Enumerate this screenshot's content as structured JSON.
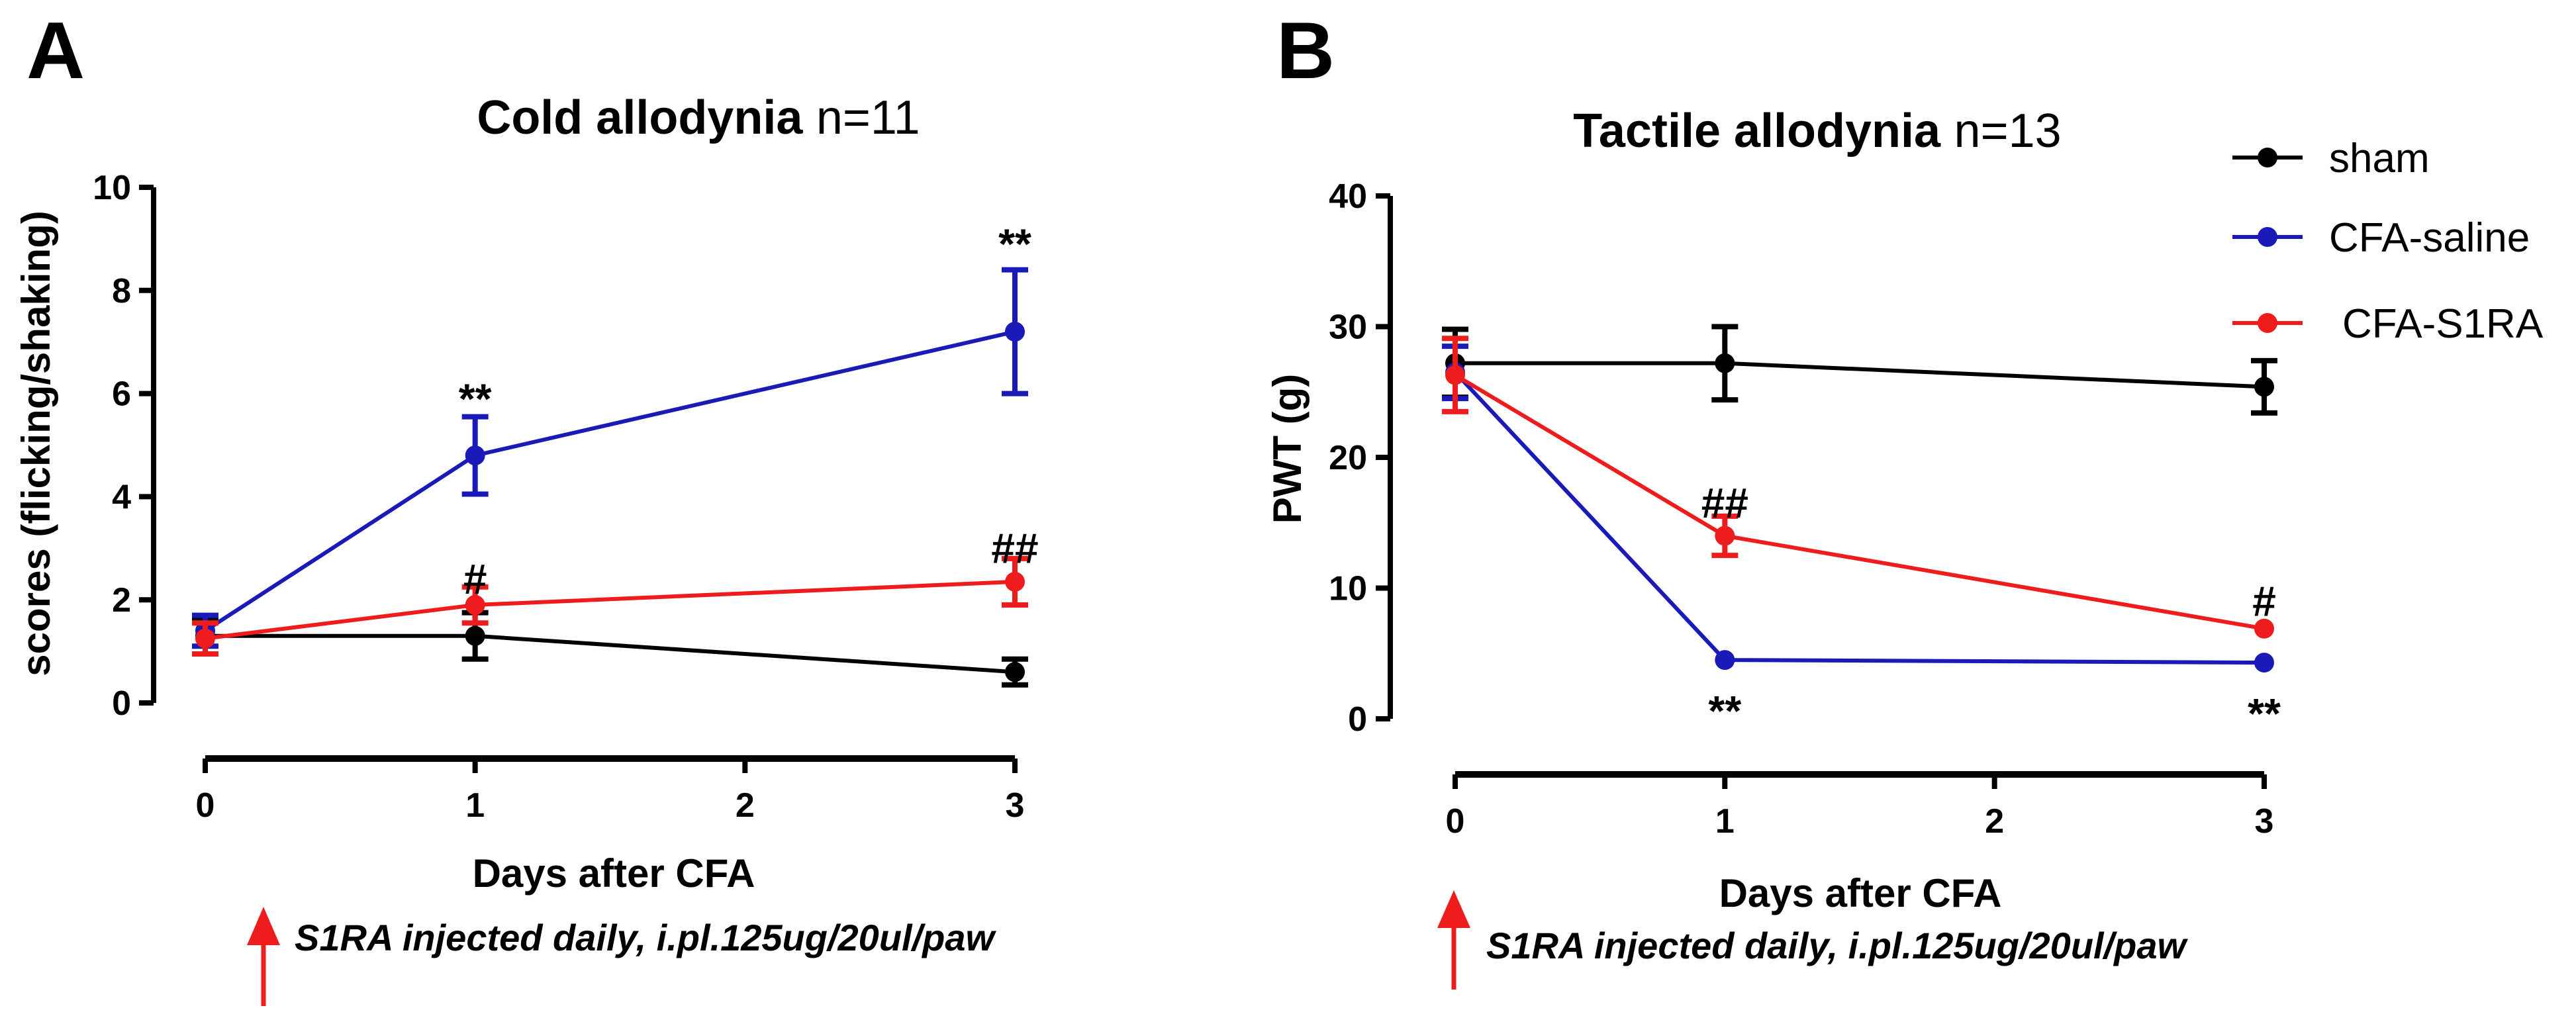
{
  "colors": {
    "sham": "#000000",
    "CFA-saline": "#1a1ab8",
    "CFA-S1RA": "#ee1c1c",
    "arrow": "#ee1c1c"
  },
  "legend": {
    "items": [
      "sham",
      "CFA-saline",
      "CFA-S1RA"
    ],
    "placement": "top-right"
  },
  "chart_data": [
    {
      "panel": "A",
      "type": "line",
      "title_bold": "Cold allodynia",
      "title_normal": "n=11",
      "xlabel": "Days after CFA",
      "ylabel": "scores (flicking/shaking)",
      "x_ticks": [
        0,
        1,
        2,
        3
      ],
      "y_ticks": [
        0,
        2,
        4,
        6,
        8,
        10
      ],
      "xlim": [
        0,
        3
      ],
      "ylim": [
        0,
        10
      ],
      "series": [
        {
          "name": "sham",
          "x": [
            0,
            1,
            3
          ],
          "y": [
            1.3,
            1.3,
            0.6
          ],
          "err": [
            0.35,
            0.45,
            0.25
          ]
        },
        {
          "name": "CFA-saline",
          "x": [
            0,
            1,
            3
          ],
          "y": [
            1.4,
            4.8,
            7.2
          ],
          "err": [
            0.3,
            0.75,
            1.2
          ]
        },
        {
          "name": "CFA-S1RA",
          "x": [
            0,
            1,
            3
          ],
          "y": [
            1.25,
            1.9,
            2.35
          ],
          "err": [
            0.3,
            0.35,
            0.45
          ]
        }
      ],
      "annotations": [
        {
          "text": "**",
          "x": 1,
          "y": 5.9
        },
        {
          "text": "**",
          "x": 3,
          "y": 8.9
        },
        {
          "text": "#",
          "x": 1,
          "y": 2.4
        },
        {
          "text": "##",
          "x": 3,
          "y": 3.0
        }
      ],
      "note": "S1RA injected daily, i.pl.125ug/20ul/paw"
    },
    {
      "panel": "B",
      "type": "line",
      "title_bold": "Tactile allodynia",
      "title_normal": "n=13",
      "xlabel": "Days after CFA",
      "ylabel": "PWT (g)",
      "x_ticks": [
        0,
        1,
        2,
        3
      ],
      "y_ticks": [
        0,
        10,
        20,
        30,
        40
      ],
      "xlim": [
        0,
        3
      ],
      "ylim": [
        0,
        40
      ],
      "series": [
        {
          "name": "sham",
          "x": [
            0,
            1,
            3
          ],
          "y": [
            27.2,
            27.2,
            25.4
          ],
          "err": [
            2.6,
            2.8,
            2.0
          ]
        },
        {
          "name": "CFA-saline",
          "x": [
            0,
            1,
            3
          ],
          "y": [
            26.5,
            4.5,
            4.3
          ],
          "err": [
            2.0,
            0,
            0
          ]
        },
        {
          "name": "CFA-S1RA",
          "x": [
            0,
            1,
            3
          ],
          "y": [
            26.3,
            14.0,
            6.9
          ],
          "err": [
            2.8,
            1.5,
            0
          ]
        }
      ],
      "annotations": [
        {
          "text": "##",
          "x": 1,
          "y": 16.5
        },
        {
          "text": "#",
          "x": 3,
          "y": 9.0
        },
        {
          "text": "**",
          "x": 1,
          "y": 0.6
        },
        {
          "text": "**",
          "x": 3,
          "y": 0.4
        }
      ],
      "note": "S1RA injected daily, i.pl.125ug/20ul/paw"
    }
  ]
}
